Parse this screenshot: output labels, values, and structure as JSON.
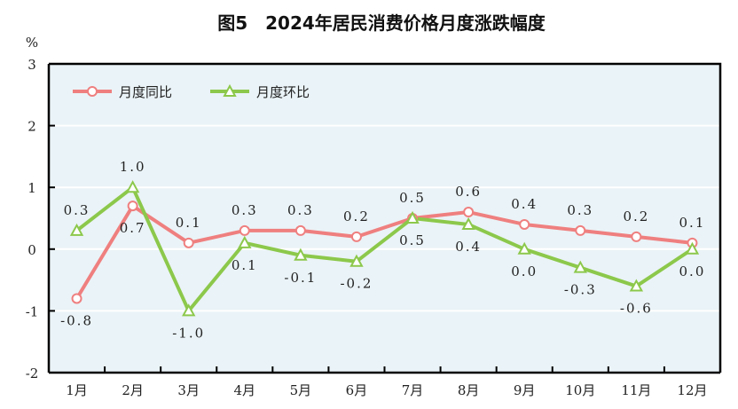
{
  "chart_data": {
    "type": "line",
    "title": "图5　2024年居民消费价格月度涨跌幅度",
    "ylabel": "%",
    "xlabel": "",
    "ylim": [
      -2,
      3
    ],
    "yticks": [
      -2,
      -1,
      0,
      1,
      2,
      3
    ],
    "categories": [
      "1月",
      "2月",
      "3月",
      "4月",
      "5月",
      "6月",
      "7月",
      "8月",
      "9月",
      "10月",
      "11月",
      "12月"
    ],
    "grid": true,
    "legend_position": "top-left",
    "series": [
      {
        "name": "月度同比",
        "color": "#ef7f7f",
        "marker": "circle",
        "values": [
          -0.8,
          0.7,
          0.1,
          0.3,
          0.3,
          0.2,
          0.5,
          0.6,
          0.4,
          0.3,
          0.2,
          0.1
        ]
      },
      {
        "name": "月度环比",
        "color": "#8cc84b",
        "marker": "triangle",
        "values": [
          0.3,
          1.0,
          -1.0,
          0.1,
          -0.1,
          -0.2,
          0.5,
          0.4,
          0.0,
          -0.3,
          -0.6,
          0.0
        ]
      }
    ],
    "background": "#eaf3f7"
  }
}
